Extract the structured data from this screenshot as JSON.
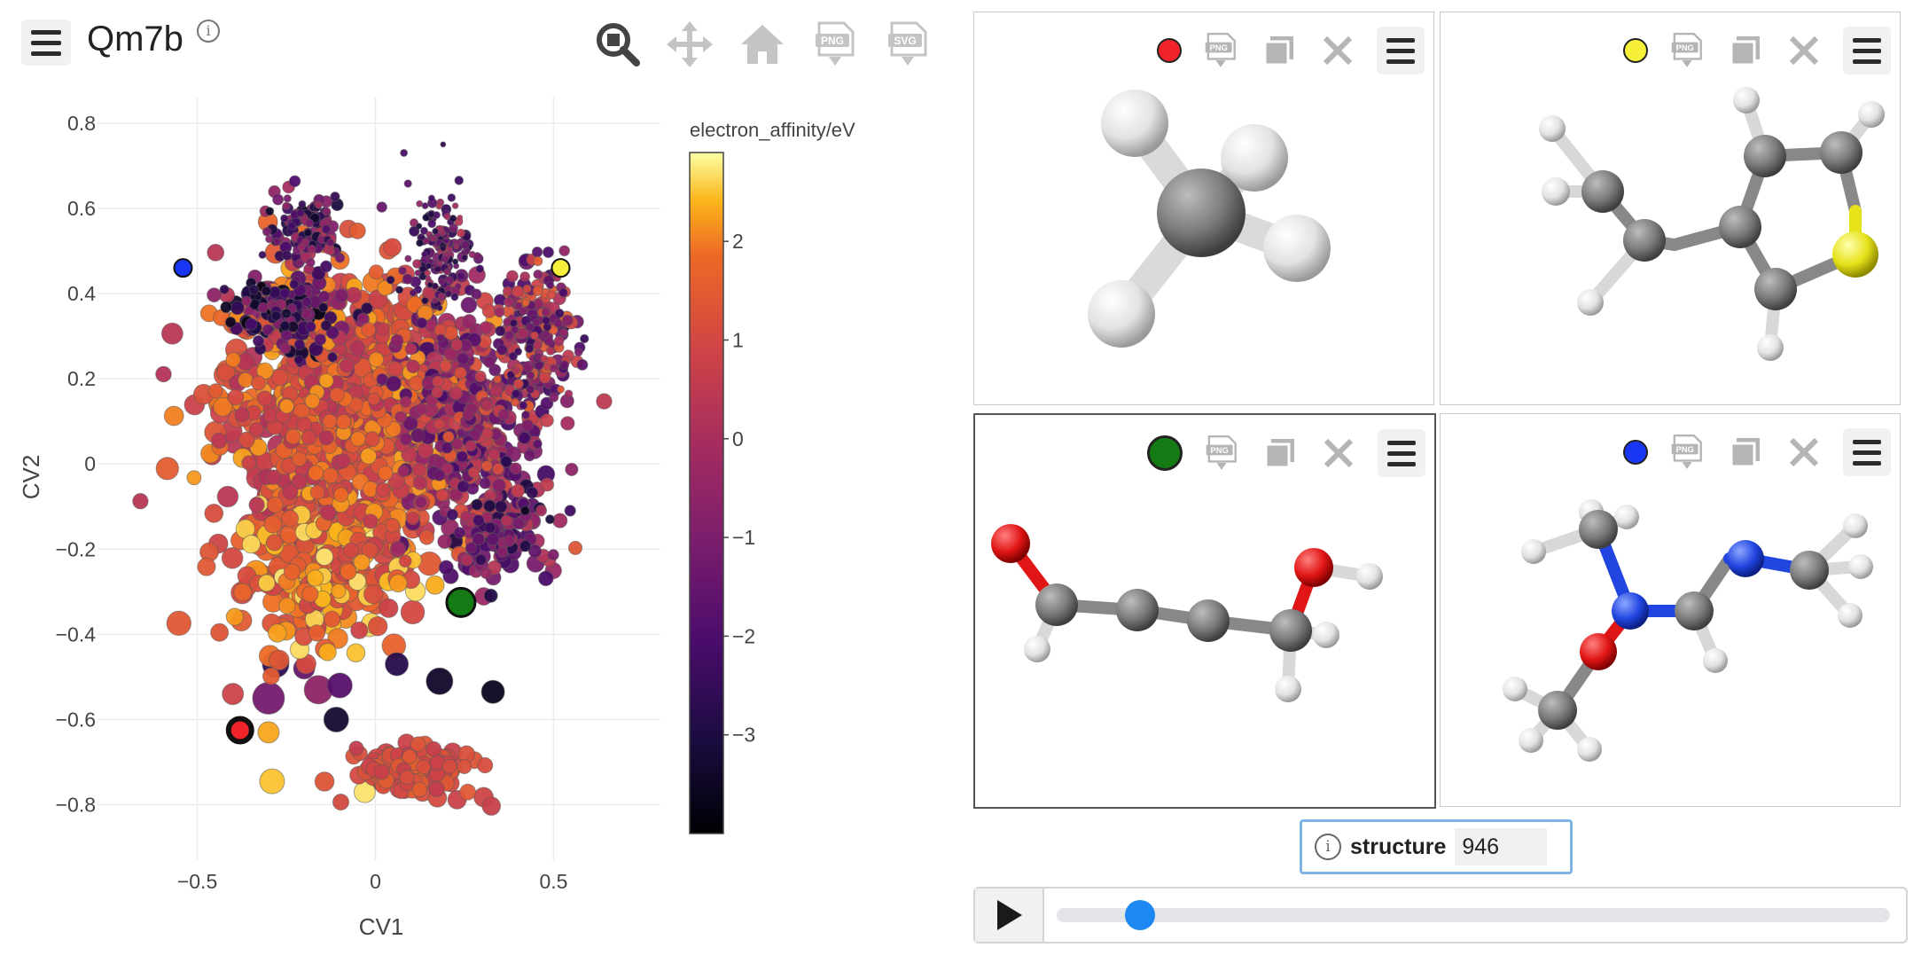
{
  "app": {
    "title": "Qm7b",
    "info_icon": "info-icon"
  },
  "toolbar": {
    "buttons": [
      "zoom-icon",
      "pan-icon",
      "home-icon",
      "download-png-icon",
      "download-svg-icon"
    ],
    "png": "PNG",
    "svg": "SVG"
  },
  "chart_data": {
    "type": "scatter",
    "xlabel": "CV1",
    "ylabel": "CV2",
    "xlim": [
      -0.78,
      0.8
    ],
    "ylim": [
      -0.93,
      0.86
    ],
    "xticks": [
      -0.5,
      0,
      0.5
    ],
    "xtick_labels": [
      "−0.5",
      "0",
      "0.5"
    ],
    "yticks": [
      0.8,
      0.6,
      0.4,
      0.2,
      0,
      -0.2,
      -0.4,
      -0.6,
      -0.8
    ],
    "ytick_labels": [
      "0.8",
      "0.6",
      "0.4",
      "0.2",
      "0",
      "−0.2",
      "−0.4",
      "−0.6",
      "−0.8"
    ],
    "grid": true,
    "colorbar": {
      "title": "electron_affinity/eV",
      "range": [
        -4.0,
        2.9
      ],
      "ticks": [
        2,
        1,
        0,
        -1,
        -2,
        -3
      ],
      "tick_labels": [
        "2",
        "1",
        "0",
        "−1",
        "−2",
        "−3"
      ],
      "colorscale": "inferno"
    },
    "highlighted_points": [
      {
        "x": -0.54,
        "y": 0.46,
        "color": "#1a36f5"
      },
      {
        "x": 0.52,
        "y": 0.46,
        "color": "#f7f03a"
      },
      {
        "x": 0.24,
        "y": -0.325,
        "color": "#147b14"
      },
      {
        "x": -0.38,
        "y": -0.625,
        "color": "#f0232b"
      }
    ],
    "clusters": [
      {
        "cx": -0.1,
        "cy": 0.15,
        "sx": 0.3,
        "sy": 0.28,
        "n": 900,
        "rmin": 8,
        "rmax": 13,
        "vmin": 0.2,
        "vmax": 2.3
      },
      {
        "cx": -0.15,
        "cy": -0.25,
        "sx": 0.22,
        "sy": 0.15,
        "n": 260,
        "rmin": 9,
        "rmax": 14,
        "vmin": 0.8,
        "vmax": 2.8
      },
      {
        "cx": 0.25,
        "cy": 0.1,
        "sx": 0.2,
        "sy": 0.25,
        "n": 350,
        "rmin": 6,
        "rmax": 10,
        "vmin": -2.2,
        "vmax": 1.4
      },
      {
        "cx": 0.45,
        "cy": 0.3,
        "sx": 0.1,
        "sy": 0.15,
        "n": 220,
        "rmin": 4,
        "rmax": 8,
        "vmin": -2.5,
        "vmax": 1.6
      },
      {
        "cx": 0.18,
        "cy": 0.5,
        "sx": 0.08,
        "sy": 0.13,
        "n": 160,
        "rmin": 3,
        "rmax": 6,
        "vmin": -3.2,
        "vmax": 0.5
      },
      {
        "cx": -0.2,
        "cy": 0.55,
        "sx": 0.12,
        "sy": 0.08,
        "n": 110,
        "rmin": 4,
        "rmax": 7,
        "vmin": -3.5,
        "vmax": 0.3
      },
      {
        "cx": 0.35,
        "cy": -0.15,
        "sx": 0.12,
        "sy": 0.12,
        "n": 120,
        "rmin": 6,
        "rmax": 10,
        "vmin": -3.0,
        "vmax": 0.5
      },
      {
        "cx": 0.1,
        "cy": -0.72,
        "sx": 0.16,
        "sy": 0.05,
        "n": 130,
        "rmin": 8,
        "rmax": 11,
        "vmin": 0.6,
        "vmax": 1.6
      },
      {
        "cx": -0.25,
        "cy": 0.35,
        "sx": 0.15,
        "sy": 0.08,
        "n": 120,
        "rmin": 5,
        "rmax": 9,
        "vmin": -3.8,
        "vmax": -0.5
      }
    ],
    "outliers": [
      {
        "x": -0.28,
        "y": -0.47,
        "v": -2.6,
        "r": 15
      },
      {
        "x": -0.2,
        "y": -0.48,
        "v": -1.5,
        "r": 12
      },
      {
        "x": -0.1,
        "y": -0.52,
        "v": -1.8,
        "r": 14
      },
      {
        "x": 0.06,
        "y": -0.47,
        "v": -2.8,
        "r": 13
      },
      {
        "x": 0.18,
        "y": -0.51,
        "v": -3.4,
        "r": 15
      },
      {
        "x": 0.33,
        "y": -0.535,
        "v": -3.6,
        "r": 13
      },
      {
        "x": -0.3,
        "y": -0.55,
        "v": -1.2,
        "r": 18
      },
      {
        "x": -0.16,
        "y": -0.53,
        "v": -0.6,
        "r": 16
      },
      {
        "x": -0.11,
        "y": -0.6,
        "v": -3.3,
        "r": 14
      },
      {
        "x": -0.4,
        "y": -0.54,
        "v": 0.8,
        "r": 12
      },
      {
        "x": -0.3,
        "y": -0.63,
        "v": 2.3,
        "r": 12
      },
      {
        "x": -0.29,
        "y": -0.745,
        "v": 2.5,
        "r": 14
      },
      {
        "x": -0.03,
        "y": -0.77,
        "v": 2.7,
        "r": 12
      },
      {
        "x": 0.42,
        "y": -0.11,
        "v": -3.5,
        "r": 5
      },
      {
        "x": 0.49,
        "y": -0.13,
        "v": -3.1,
        "r": 5
      },
      {
        "x": 0.08,
        "y": 0.73,
        "v": -2.2,
        "r": 4
      },
      {
        "x": 0.19,
        "y": 0.75,
        "v": -2.6,
        "r": 3
      }
    ]
  },
  "viewers": [
    {
      "dot_color": "#f0232b",
      "active": false,
      "molecule": "methane"
    },
    {
      "dot_color": "#f7f03a",
      "active": false,
      "molecule": "vinylthiophene"
    },
    {
      "dot_color": "#147b14",
      "active": true,
      "molecule": "enyne-alcohol"
    },
    {
      "dot_color": "#1a36f5",
      "active": false,
      "molecule": "amidine"
    }
  ],
  "viewer_icons": {
    "png": "PNG"
  },
  "structure": {
    "label": "structure",
    "value": "946"
  },
  "player": {
    "progress": 0.1
  },
  "colors": {
    "carbon": "#8a8a8a",
    "hydrogen": "#ededed",
    "oxygen": "#e01515",
    "nitrogen": "#2145e0",
    "sulfur": "#e6e21a",
    "accent": "#1e88f2"
  }
}
